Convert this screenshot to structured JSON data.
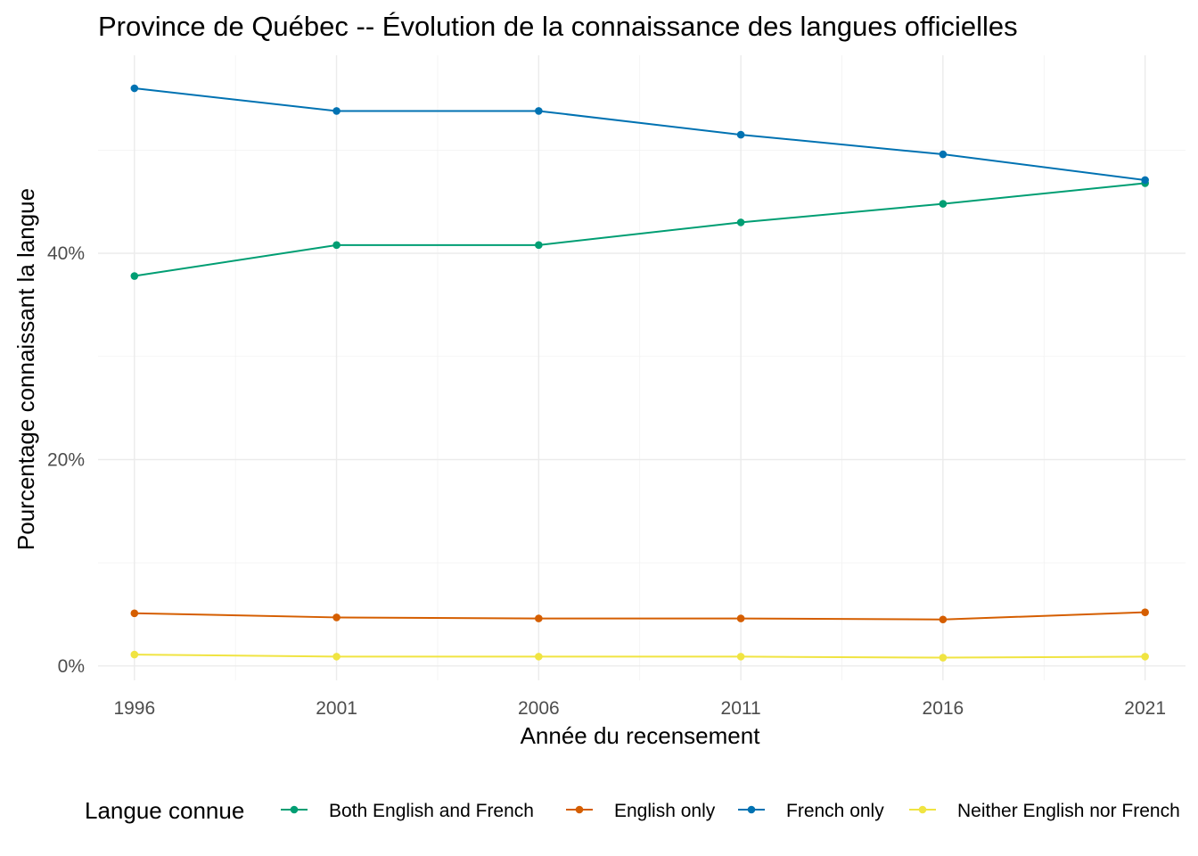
{
  "chart_data": {
    "type": "line",
    "title": "Province de Québec -- Évolution de la connaissance des langues officielles",
    "xlabel": "Année du recensement",
    "ylabel": "Pourcentage connaissant la langue",
    "x": [
      1996,
      2001,
      2006,
      2011,
      2016,
      2021
    ],
    "x_tick_labels": [
      "1996",
      "2001",
      "2006",
      "2011",
      "2016",
      "2021"
    ],
    "xlim": [
      1995.1,
      2022.0
    ],
    "ylim": [
      -1.4,
      59.2
    ],
    "y_ticks": [
      0,
      20,
      40
    ],
    "y_tick_labels": [
      "0%",
      "20%",
      "40%"
    ],
    "grid": true,
    "legend": {
      "title": "Langue connue",
      "position": "bottom"
    },
    "series": [
      {
        "name": "Both English and French",
        "color": "#009E73",
        "values": [
          37.8,
          40.8,
          40.8,
          43.0,
          44.8,
          46.8
        ]
      },
      {
        "name": "English only",
        "color": "#D55E00",
        "values": [
          5.1,
          4.7,
          4.6,
          4.6,
          4.5,
          5.2
        ]
      },
      {
        "name": "French only",
        "color": "#0072B2",
        "values": [
          56.0,
          53.8,
          53.8,
          51.5,
          49.6,
          47.1
        ]
      },
      {
        "name": "Neither English nor French",
        "color": "#F0E442",
        "values": [
          1.1,
          0.9,
          0.9,
          0.9,
          0.8,
          0.9
        ]
      }
    ]
  }
}
